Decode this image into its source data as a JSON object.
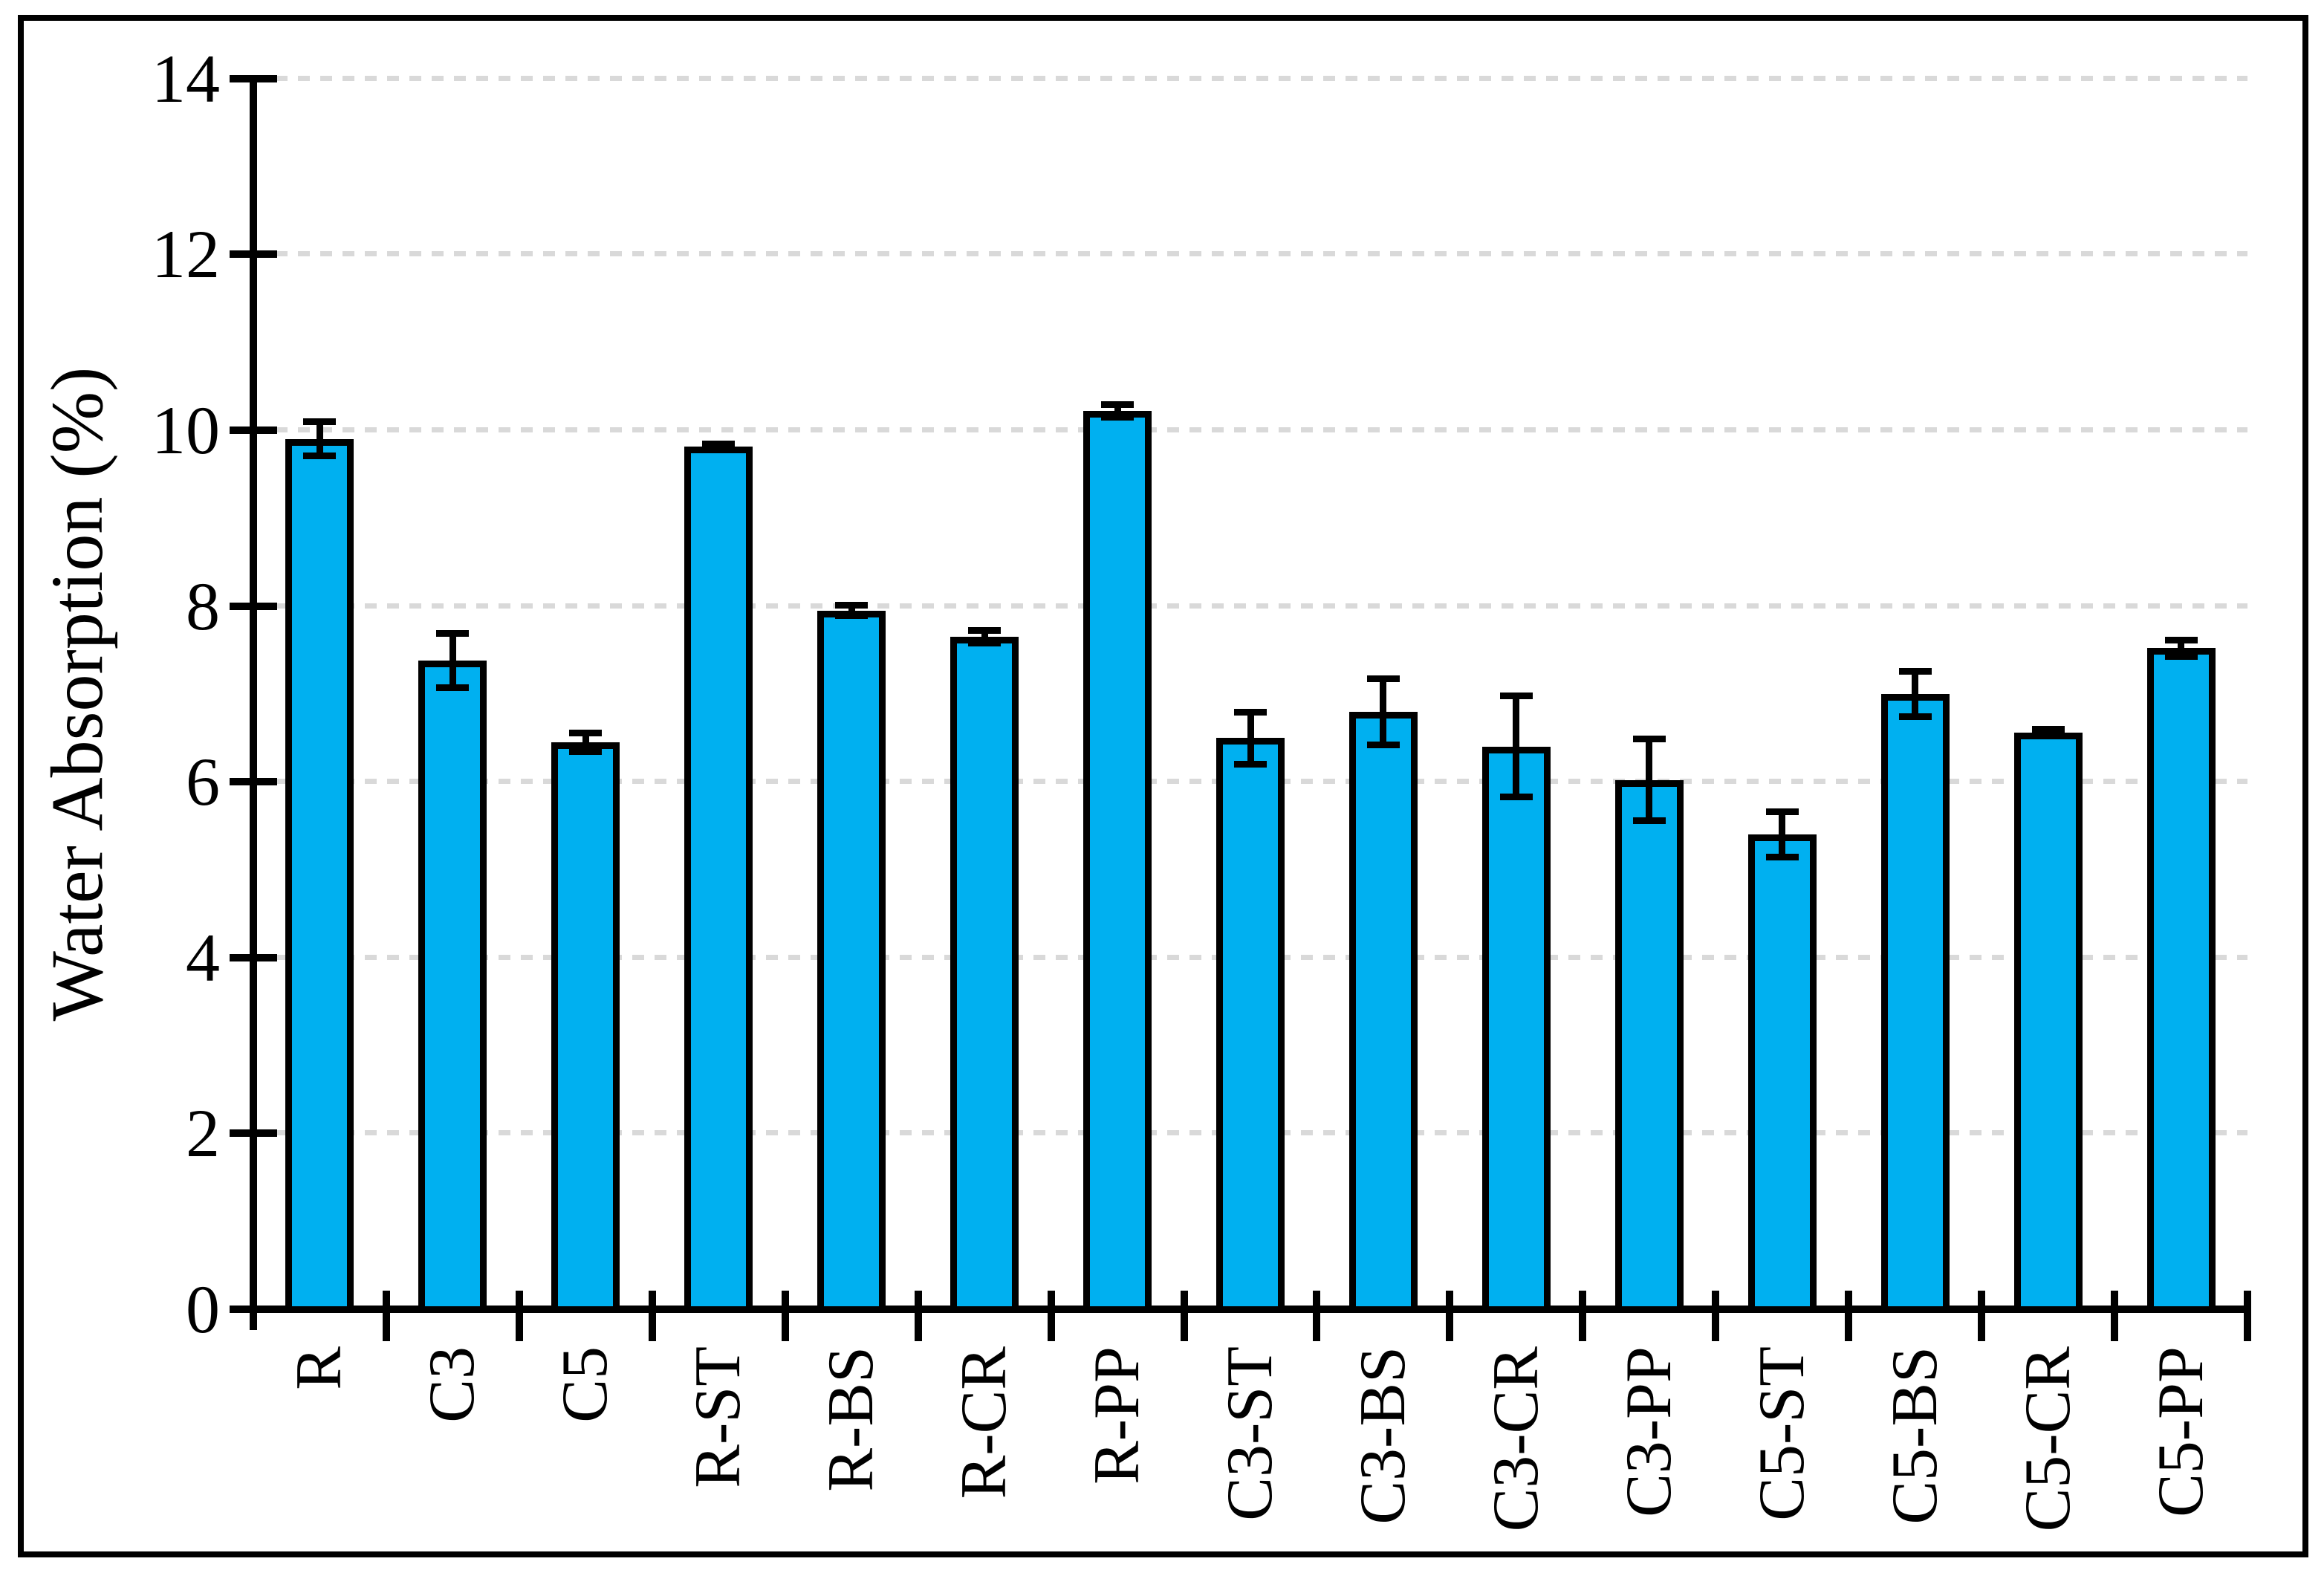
{
  "figure": {
    "background_color": "#FFFFFF",
    "frame_color": "#000000"
  },
  "chart_data": {
    "type": "bar",
    "title": "",
    "xlabel": "",
    "ylabel": "Water Absorption (%)",
    "ylim": [
      0,
      14
    ],
    "yticks": [
      0,
      2,
      4,
      6,
      8,
      10,
      12,
      14
    ],
    "grid": "horizontal dashed gridlines at every y tick",
    "legend": "none",
    "error_bars": "symmetric, with caps",
    "categories": [
      "R",
      "C3",
      "C5",
      "R-ST",
      "R-BS",
      "R-CR",
      "R-PP",
      "C3-ST",
      "C3-BS",
      "C3-CR",
      "C3-PP",
      "C5-ST",
      "C5-BS",
      "C5-CR",
      "C5-PP"
    ],
    "series": [
      {
        "name": "Water Absorption (%)",
        "values": [
          9.9,
          7.38,
          6.45,
          9.81,
          7.95,
          7.65,
          10.22,
          6.5,
          6.8,
          6.4,
          6.02,
          5.4,
          7.0,
          6.56,
          7.52
        ],
        "errors": [
          0.2,
          0.31,
          0.11,
          0.04,
          0.06,
          0.08,
          0.08,
          0.3,
          0.38,
          0.58,
          0.47,
          0.26,
          0.26,
          0.04,
          0.1
        ]
      }
    ],
    "colors": {
      "bar_fill": "#00B0F0",
      "bar_border": "#000000",
      "error_bar": "#000000",
      "gridline": "#D9D9D9",
      "axis": "#000000",
      "text": "#000000"
    }
  }
}
